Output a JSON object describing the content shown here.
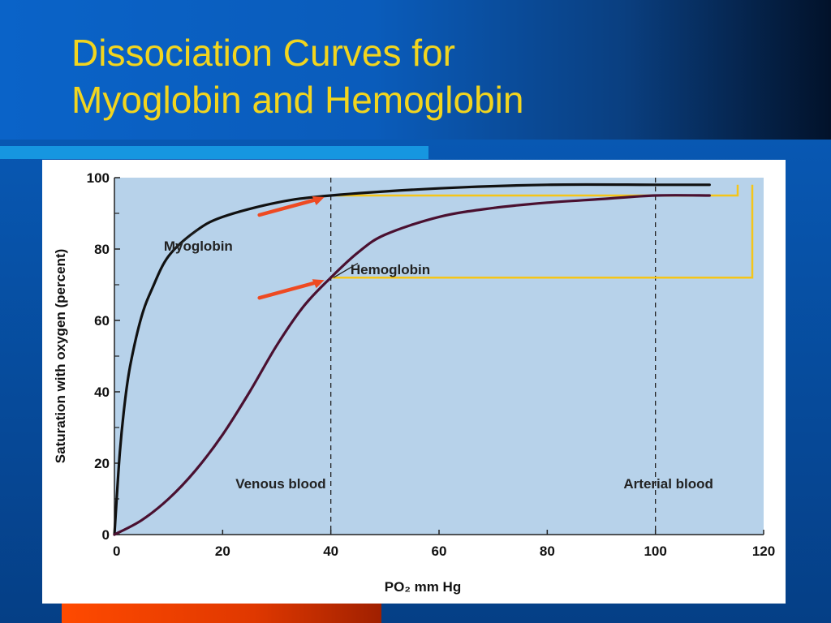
{
  "slide": {
    "title_line1": "Dissociation Curves for",
    "title_line2": "Myoglobin and Hemoglobin",
    "colors": {
      "title": "#f2d51e",
      "plot_background": "#b7d2ea",
      "highlight_box": "#f5c518",
      "arrow": "#ee4a22",
      "myoglobin_curve": "#111111",
      "hemoglobin_curve": "#4a1030"
    }
  },
  "chart_data": {
    "type": "line",
    "title": "",
    "xlabel": "PO₂ mm Hg",
    "ylabel": "Saturation with oxygen (percent)",
    "xlim": [
      0,
      120
    ],
    "ylim": [
      0,
      100
    ],
    "x_ticks": [
      "0",
      "20",
      "40",
      "60",
      "80",
      "100",
      "120"
    ],
    "y_ticks": [
      "0",
      "20",
      "40",
      "60",
      "80",
      "100"
    ],
    "grid": false,
    "series": [
      {
        "name": "Myoglobin",
        "x": [
          0,
          1,
          2,
          3,
          5,
          7,
          10,
          15,
          20,
          30,
          40,
          60,
          80,
          100,
          110
        ],
        "y": [
          0,
          23,
          38,
          48,
          61,
          69,
          78,
          85,
          89,
          93,
          95,
          97,
          98,
          98,
          98
        ]
      },
      {
        "name": "Hemoglobin",
        "x": [
          0,
          5,
          10,
          15,
          20,
          25,
          30,
          35,
          40,
          45,
          50,
          60,
          70,
          80,
          90,
          100,
          110
        ],
        "y": [
          0,
          4,
          10,
          18,
          28,
          40,
          53,
          64,
          72,
          79,
          84,
          89,
          91.5,
          93,
          94,
          95,
          95
        ]
      }
    ],
    "reference_lines": [
      {
        "x": 40,
        "label": "Venous blood"
      },
      {
        "x": 100,
        "label": "Arterial blood"
      }
    ],
    "annotations": {
      "myoglobin_label": "Myoglobin",
      "hemoglobin_label": "Hemoglobin"
    },
    "highlight_boxes": [
      {
        "x_from": 40,
        "y_from": 95,
        "y_to": 98
      },
      {
        "x_from": 40,
        "y_from": 72,
        "y_to": 98
      }
    ],
    "arrows_point_to": [
      {
        "x": 40,
        "y": 95
      },
      {
        "x": 40,
        "y": 72
      }
    ]
  }
}
